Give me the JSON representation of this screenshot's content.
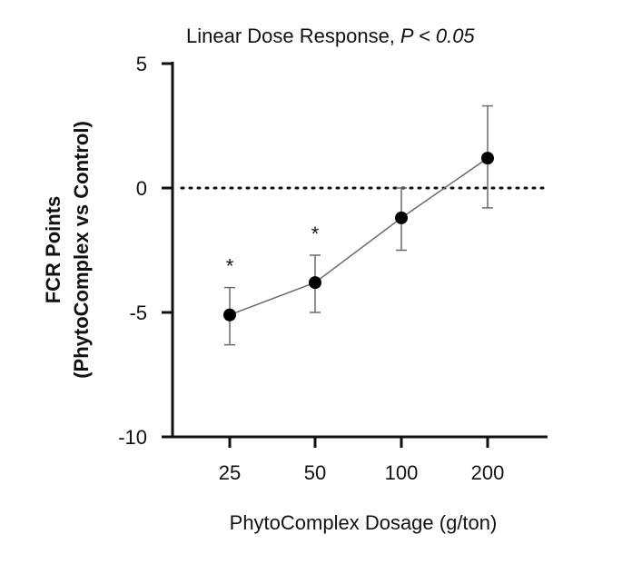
{
  "chart_data": {
    "type": "line",
    "title": "Linear Dose Response,",
    "title_stat": "P < 0.05",
    "xlabel": "PhytoComplex Dosage (g/ton)",
    "ylabel_line1": "FCR Points",
    "ylabel_line2": "(PhytoComplex vs Control)",
    "ylim": [
      -10,
      5
    ],
    "yticks": [
      5,
      0,
      -5,
      -10
    ],
    "ytick_labels": [
      "5",
      "0",
      "-5",
      "-10"
    ],
    "categories": [
      "25",
      "50",
      "100",
      "200"
    ],
    "series": [
      {
        "name": "FCR Points",
        "values": [
          -5.1,
          -3.8,
          -1.2,
          1.2
        ],
        "err_low": [
          -6.3,
          -5.0,
          -2.5,
          -0.8
        ],
        "err_high": [
          -4.0,
          -2.7,
          0.0,
          3.3
        ]
      }
    ],
    "significance_marker": "*",
    "significant": [
      true,
      true,
      false,
      false
    ],
    "reference_line": 0
  },
  "colors": {
    "axis": "#111111",
    "line": "#6b6b6b",
    "marker": "#000000"
  }
}
